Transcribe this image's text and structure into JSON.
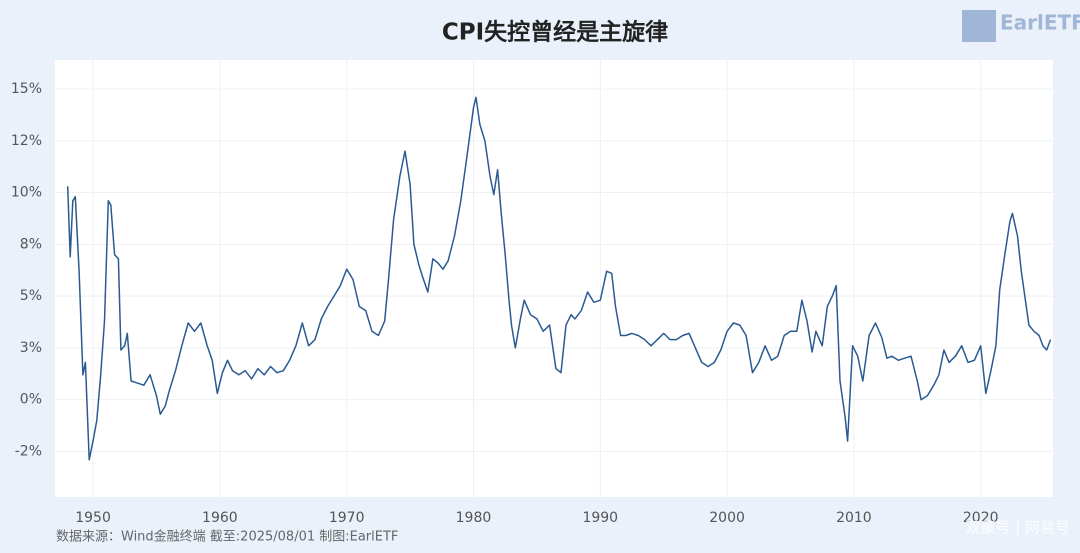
{
  "chart_data": {
    "type": "line",
    "title": "CPI失控曾经是主旋律",
    "source": "数据来源：Wind金融终端 截至:2025/08/01 制图:EarlETF",
    "logo": "EarlETF",
    "watermark": "双豪号 | 网易号",
    "color": "#2b5a92",
    "grid": true,
    "xlim": [
      1947,
      2025.7
    ],
    "xticks": [
      1950,
      1960,
      1970,
      1980,
      1990,
      2000,
      2010,
      2020
    ],
    "ylim": [
      -4.7,
      16.4
    ],
    "yticks": [
      {
        "value": -2.5,
        "label": "-2%"
      },
      {
        "value": 0,
        "label": "0%"
      },
      {
        "value": 2.5,
        "label": "3%"
      },
      {
        "value": 5,
        "label": "5%"
      },
      {
        "value": 7.5,
        "label": "8%"
      },
      {
        "value": 10,
        "label": "10%"
      },
      {
        "value": 12.5,
        "label": "12%"
      },
      {
        "value": 15,
        "label": "15%"
      }
    ],
    "x": [
      1948.0,
      1948.2,
      1948.4,
      1948.6,
      1948.9,
      1949.2,
      1949.4,
      1949.7,
      1950.0,
      1950.3,
      1950.6,
      1950.9,
      1951.2,
      1951.4,
      1951.7,
      1952.0,
      1952.2,
      1952.5,
      1952.7,
      1953.0,
      1953.5,
      1954.0,
      1954.5,
      1955.0,
      1955.3,
      1955.7,
      1956.0,
      1956.5,
      1957.0,
      1957.5,
      1958.0,
      1958.5,
      1959.0,
      1959.4,
      1959.8,
      1960.2,
      1960.6,
      1961.0,
      1961.5,
      1962.0,
      1962.5,
      1963.0,
      1963.5,
      1964.0,
      1964.5,
      1965.0,
      1965.5,
      1966.0,
      1966.5,
      1967.0,
      1967.5,
      1968.0,
      1968.5,
      1969.0,
      1969.5,
      1970.0,
      1970.5,
      1971.0,
      1971.5,
      1972.0,
      1972.5,
      1973.0,
      1973.3,
      1973.7,
      1974.2,
      1974.6,
      1975.0,
      1975.3,
      1975.7,
      1976.0,
      1976.4,
      1976.8,
      1977.2,
      1977.6,
      1978.0,
      1978.5,
      1979.0,
      1979.5,
      1980.0,
      1980.2,
      1980.5,
      1980.9,
      1981.3,
      1981.6,
      1981.9,
      1982.2,
      1982.5,
      1982.8,
      1983.0,
      1983.3,
      1983.7,
      1984.0,
      1984.5,
      1985.0,
      1985.5,
      1986.0,
      1986.5,
      1986.9,
      1987.3,
      1987.7,
      1988.0,
      1988.5,
      1989.0,
      1989.5,
      1990.0,
      1990.5,
      1990.9,
      1991.2,
      1991.6,
      1992.0,
      1992.5,
      1993.0,
      1993.5,
      1994.0,
      1994.5,
      1995.0,
      1995.5,
      1996.0,
      1996.5,
      1997.0,
      1997.5,
      1998.0,
      1998.5,
      1999.0,
      1999.5,
      2000.0,
      2000.5,
      2001.0,
      2001.5,
      2002.0,
      2002.5,
      2003.0,
      2003.5,
      2004.0,
      2004.5,
      2005.0,
      2005.5,
      2005.9,
      2006.3,
      2006.7,
      2007.0,
      2007.5,
      2007.9,
      2008.3,
      2008.6,
      2008.9,
      2009.3,
      2009.5,
      2009.9,
      2010.3,
      2010.7,
      2011.2,
      2011.7,
      2012.2,
      2012.6,
      2013.0,
      2013.5,
      2014.0,
      2014.5,
      2015.0,
      2015.3,
      2015.8,
      2016.3,
      2016.7,
      2017.1,
      2017.5,
      2018.0,
      2018.5,
      2019.0,
      2019.5,
      2020.0,
      2020.4,
      2020.8,
      2021.2,
      2021.5,
      2021.9,
      2022.3,
      2022.5,
      2022.9,
      2023.2,
      2023.5,
      2023.8,
      2024.2,
      2024.6,
      2024.9,
      2025.2,
      2025.5
    ],
    "values": [
      10.3,
      6.9,
      9.6,
      9.8,
      6.2,
      1.2,
      1.8,
      -2.9,
      -2.0,
      -1.0,
      1.2,
      3.8,
      9.6,
      9.4,
      7.0,
      6.8,
      2.4,
      2.6,
      3.2,
      0.9,
      0.8,
      0.7,
      1.2,
      0.2,
      -0.7,
      -0.3,
      0.4,
      1.4,
      2.6,
      3.7,
      3.3,
      3.7,
      2.6,
      1.9,
      0.3,
      1.3,
      1.9,
      1.4,
      1.2,
      1.4,
      1.0,
      1.5,
      1.2,
      1.6,
      1.3,
      1.4,
      1.9,
      2.6,
      3.7,
      2.6,
      2.9,
      3.9,
      4.5,
      5.0,
      5.5,
      6.3,
      5.8,
      4.5,
      4.3,
      3.3,
      3.1,
      3.8,
      5.8,
      8.7,
      10.8,
      12.0,
      10.4,
      7.5,
      6.5,
      5.9,
      5.2,
      6.8,
      6.6,
      6.3,
      6.7,
      7.9,
      9.6,
      11.8,
      14.1,
      14.6,
      13.3,
      12.5,
      10.8,
      9.9,
      11.1,
      8.9,
      7.0,
      4.8,
      3.6,
      2.5,
      3.9,
      4.8,
      4.1,
      3.9,
      3.3,
      3.6,
      1.5,
      1.3,
      3.6,
      4.1,
      3.9,
      4.3,
      5.2,
      4.7,
      4.8,
      6.2,
      6.1,
      4.5,
      3.1,
      3.1,
      3.2,
      3.1,
      2.9,
      2.6,
      2.9,
      3.2,
      2.9,
      2.9,
      3.1,
      3.2,
      2.5,
      1.8,
      1.6,
      1.8,
      2.4,
      3.3,
      3.7,
      3.6,
      3.1,
      1.3,
      1.8,
      2.6,
      1.9,
      2.1,
      3.1,
      3.3,
      3.3,
      4.8,
      3.8,
      2.3,
      3.3,
      2.6,
      4.5,
      5.0,
      5.5,
      0.9,
      -0.8,
      -2.0,
      2.6,
      2.1,
      0.9,
      3.1,
      3.7,
      3.0,
      2.0,
      2.1,
      1.9,
      2.0,
      2.1,
      0.9,
      0.0,
      0.2,
      0.7,
      1.2,
      2.4,
      1.8,
      2.1,
      2.6,
      1.8,
      1.9,
      2.6,
      0.3,
      1.4,
      2.6,
      5.3,
      7.0,
      8.6,
      9.0,
      7.9,
      6.2,
      4.9,
      3.6,
      3.3,
      3.1,
      2.6,
      2.4,
      2.9
    ]
  }
}
